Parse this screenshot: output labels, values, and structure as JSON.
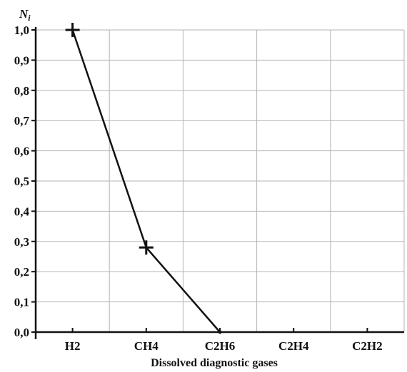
{
  "chart_data": {
    "type": "line",
    "categories": [
      "H2",
      "CH4",
      "C2H6",
      "C2H4",
      "C2H2"
    ],
    "series": [
      {
        "values": [
          1.0,
          0.28,
          0.0,
          null,
          null
        ]
      }
    ],
    "y_ticks": [
      "0,0",
      "0,1",
      "0,2",
      "0,3",
      "0,4",
      "0,5",
      "0,6",
      "0,7",
      "0,8",
      "0,9",
      "1,0"
    ],
    "ylim": [
      0,
      1.0
    ],
    "ylabel_main": "N",
    "ylabel_sub": "i",
    "xlabel": "Dissolved diagnostic gases",
    "grid": true,
    "colors": {
      "line": "#111111",
      "grid": "#b5b5b5",
      "axis": "#111111"
    }
  }
}
